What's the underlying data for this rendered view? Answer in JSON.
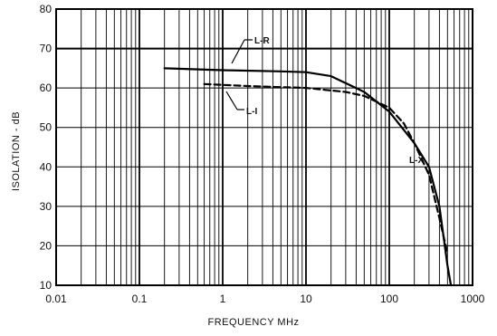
{
  "chart_data": {
    "type": "line",
    "title": "",
    "xlabel": "FREQUENCY MHz",
    "ylabel": "ISOLATION - dB",
    "xscale": "log",
    "xlim": [
      0.01,
      1000
    ],
    "ylim": [
      10,
      80
    ],
    "grid": true,
    "x_ticks": [
      0.01,
      0.1,
      1,
      10,
      100,
      1000
    ],
    "x_tick_labels": [
      "0.01",
      "0.1",
      "1",
      "10",
      "100",
      "1000"
    ],
    "y_ticks": [
      10,
      20,
      30,
      40,
      50,
      60,
      70,
      80
    ],
    "y_tick_labels": [
      "10",
      "20",
      "30",
      "40",
      "50",
      "60",
      "70",
      "80"
    ],
    "series": [
      {
        "name": "L-R",
        "style": "solid",
        "points": [
          [
            0.2,
            65
          ],
          [
            1,
            64.5
          ],
          [
            5,
            64.2
          ],
          [
            10,
            64
          ],
          [
            20,
            63
          ],
          [
            50,
            59
          ],
          [
            100,
            54
          ],
          [
            200,
            46
          ],
          [
            300,
            40
          ],
          [
            400,
            30
          ],
          [
            500,
            15
          ],
          [
            550,
            10
          ]
        ]
      },
      {
        "name": "L-I",
        "style": "dashed",
        "points": [
          [
            0.6,
            61
          ],
          [
            2,
            60.5
          ],
          [
            10,
            60
          ],
          [
            30,
            59
          ],
          [
            50,
            58
          ],
          [
            100,
            55
          ],
          [
            150,
            51
          ],
          [
            200,
            46
          ],
          [
            300,
            38
          ],
          [
            400,
            27
          ],
          [
            500,
            18
          ]
        ]
      }
    ],
    "annotations": [
      {
        "text": "L-R",
        "target_series": "L-R"
      },
      {
        "text": "L-I",
        "target_series": "L-I"
      },
      {
        "text": "L-X",
        "target_series": "L-R"
      }
    ],
    "colors": {
      "background": "#ffffff",
      "grid": "#000000",
      "lines": "#000000"
    }
  }
}
